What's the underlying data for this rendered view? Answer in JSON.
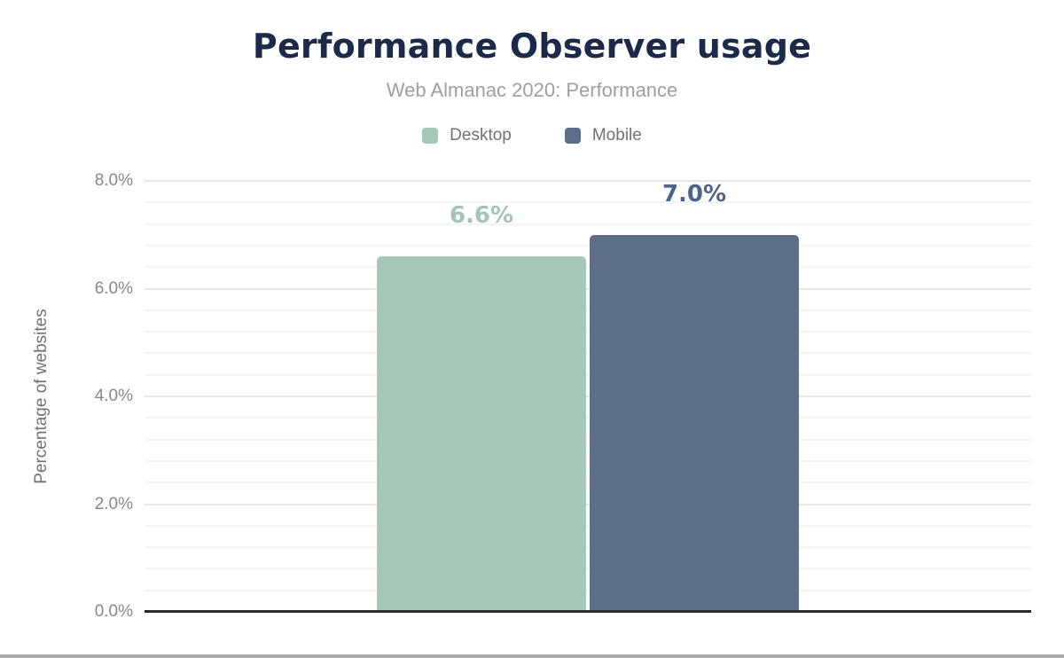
{
  "header": {
    "title": "Performance Observer usage",
    "subtitle": "Web Almanac 2020: Performance"
  },
  "chart_data": {
    "type": "bar",
    "title": "Performance Observer usage",
    "subtitle": "Web Almanac 2020: Performance",
    "categories": [
      "Desktop",
      "Mobile"
    ],
    "values": [
      6.6,
      7.0
    ],
    "value_labels": [
      "6.6%",
      "7.0%"
    ],
    "series_colors": [
      "#a6c8b8",
      "#5d6e89"
    ],
    "value_label_colors": [
      "#a2c6b3",
      "#4f6489"
    ],
    "xlabel": "",
    "ylabel": "Percentage of websites",
    "ylim": [
      0,
      8
    ],
    "ytick_values": [
      0,
      2,
      4,
      6,
      8
    ],
    "ytick_labels": [
      "0.0%",
      "2.0%",
      "4.0%",
      "6.0%",
      "8.0%"
    ],
    "major_step": 2,
    "minor_step": 0.4,
    "grid": "on",
    "legend_position": "top"
  },
  "colors": {
    "background": "#ffffff",
    "title_text": "#1b2a49",
    "subtitle_text": "#9aa0a6",
    "legend_text": "#6e7378",
    "tick_text": "#84888d",
    "axis_title_text": "#6e7378",
    "grid_major": "#e7e7e7",
    "grid_minor": "#f4f4f4",
    "axis_line": "#2b2b2b",
    "divider": "#ababab"
  }
}
